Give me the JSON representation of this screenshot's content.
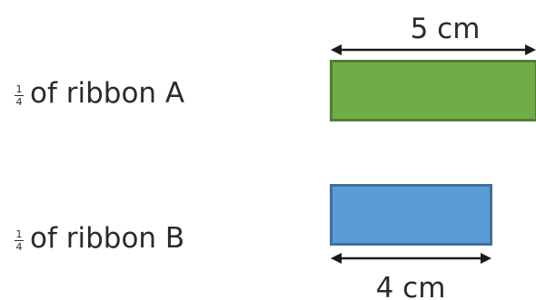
{
  "ribbon_a": {
    "fraction_numerator": "1",
    "fraction_denominator": "4",
    "label": "of ribbon A",
    "length_label": "5 cm",
    "color": "#70ad47",
    "border_color": "#507e32"
  },
  "ribbon_b": {
    "fraction_numerator": "1",
    "fraction_denominator": "4",
    "label": "of ribbon B",
    "length_label": "4 cm",
    "color": "#5b9bd5",
    "border_color": "#41719c"
  },
  "arrow_color": "#1a1a1a"
}
